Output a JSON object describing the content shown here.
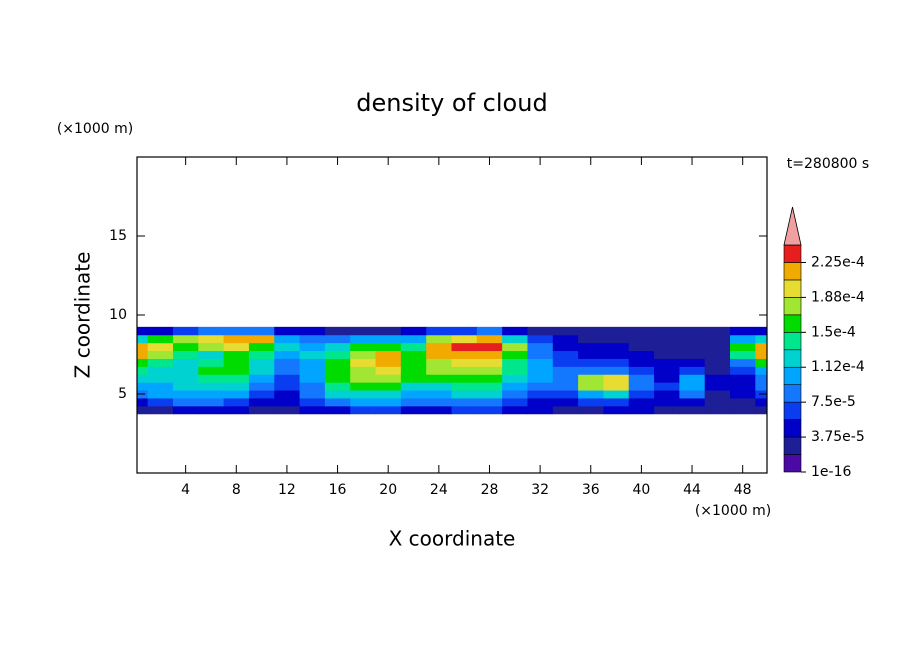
{
  "chart_data": {
    "type": "contour",
    "title": "density of cloud",
    "x_label": "X coordinate",
    "y_label": "Z coordinate",
    "x_unit": "(×1000 m)",
    "y_unit": "(×1000 m)",
    "time_label": "t=280800 s",
    "xlim": [
      0,
      50
    ],
    "ylim": [
      0,
      20
    ],
    "xticks": [
      4,
      8,
      12,
      16,
      20,
      24,
      28,
      32,
      36,
      40,
      44,
      48
    ],
    "yticks": [
      5,
      10,
      15
    ],
    "x": [
      0,
      2,
      4,
      6,
      8,
      10,
      12,
      14,
      16,
      18,
      20,
      22,
      24,
      26,
      28,
      30,
      32,
      34,
      36,
      38,
      40,
      42,
      44,
      46,
      48,
      50
    ],
    "z": [
      4,
      4.5,
      5,
      5.5,
      6,
      6.5,
      7,
      7.5,
      8,
      8.5,
      9
    ],
    "values": [
      [
        2e-05,
        3e-05,
        4e-05,
        4e-05,
        4e-05,
        3e-05,
        3e-05,
        4e-05,
        5e-05,
        6e-05,
        6e-05,
        5e-05,
        5e-05,
        6e-05,
        6e-05,
        5e-05,
        4e-05,
        3e-05,
        3e-05,
        4e-05,
        4e-05,
        3e-05,
        3e-05,
        3e-05,
        3e-05,
        3e-05
      ],
      [
        5e-05,
        7e-05,
        8e-05,
        8e-05,
        7e-05,
        5e-05,
        4e-05,
        6e-05,
        9e-05,
        0.0001,
        0.0001,
        8e-05,
        8e-05,
        9e-05,
        9e-05,
        7e-05,
        5e-05,
        4e-05,
        6e-05,
        7e-05,
        5e-05,
        4e-05,
        5e-05,
        3e-05,
        3e-05,
        4e-05
      ],
      [
        8e-05,
        0.0001,
        0.00011,
        0.00011,
        0.0001,
        7e-05,
        5e-05,
        8e-05,
        0.00012,
        0.00013,
        0.00013,
        0.00011,
        0.00011,
        0.00012,
        0.00012,
        9e-05,
        7e-05,
        6e-05,
        0.00011,
        0.00013,
        7e-05,
        5e-05,
        8e-05,
        3e-05,
        4e-05,
        6e-05
      ],
      [
        0.00011,
        0.00011,
        0.00012,
        0.00013,
        0.00013,
        9e-05,
        6e-05,
        9e-05,
        0.00014,
        0.00015,
        0.00015,
        0.00013,
        0.00013,
        0.00014,
        0.00014,
        0.00011,
        9e-05,
        8e-05,
        0.00017,
        0.00019,
        9e-05,
        6e-05,
        0.00011,
        4e-05,
        5e-05,
        8e-05
      ],
      [
        0.00013,
        0.00012,
        0.00013,
        0.00014,
        0.00014,
        0.00011,
        7e-05,
        0.0001,
        0.00015,
        0.00017,
        0.00017,
        0.00015,
        0.00016,
        0.00016,
        0.00016,
        0.00013,
        0.00011,
        9e-05,
        0.00018,
        0.0002,
        8e-05,
        5e-05,
        0.0001,
        4e-05,
        5e-05,
        9e-05
      ],
      [
        0.00014,
        0.00013,
        0.00013,
        0.00015,
        0.00015,
        0.00012,
        8e-05,
        0.0001,
        0.00015,
        0.00018,
        0.00019,
        0.00016,
        0.00017,
        0.00018,
        0.00018,
        0.00014,
        0.00011,
        8e-05,
        9e-05,
        9e-05,
        6e-05,
        4e-05,
        6e-05,
        3e-05,
        6e-05,
        0.00011
      ],
      [
        0.00016,
        0.00014,
        0.00012,
        0.00014,
        0.00015,
        0.00013,
        9e-05,
        0.00011,
        0.00015,
        0.00019,
        0.00021,
        0.00016,
        0.00018,
        0.0002,
        0.0002,
        0.00014,
        0.0001,
        7e-05,
        6e-05,
        6e-05,
        5e-05,
        4e-05,
        4e-05,
        3e-05,
        9e-05,
        0.00015
      ],
      [
        0.00021,
        0.00018,
        0.00014,
        0.00013,
        0.00015,
        0.00014,
        0.0001,
        0.00012,
        0.00014,
        0.00018,
        0.00021,
        0.00015,
        0.00021,
        0.00022,
        0.00022,
        0.00015,
        9e-05,
        6e-05,
        5e-05,
        5e-05,
        4e-05,
        3e-05,
        3e-05,
        3e-05,
        0.00014,
        0.00021
      ],
      [
        0.00022,
        0.0002,
        0.00016,
        0.00017,
        0.00019,
        0.00016,
        0.00012,
        0.00011,
        0.00012,
        0.00015,
        0.00016,
        0.00014,
        0.00022,
        0.00024,
        0.00024,
        0.00017,
        8e-05,
        5e-05,
        4e-05,
        4e-05,
        3e-05,
        3e-05,
        3e-05,
        3e-05,
        0.00015,
        0.00022
      ],
      [
        0.00012,
        0.00015,
        0.00017,
        0.0002,
        0.00021,
        0.00022,
        0.00011,
        9e-05,
        8e-05,
        0.0001,
        0.0001,
        0.0001,
        0.00017,
        0.0002,
        0.00021,
        0.00013,
        6e-05,
        4e-05,
        3e-05,
        3e-05,
        3e-05,
        3e-05,
        3e-05,
        3e-05,
        0.0001,
        0.00013
      ],
      [
        4e-05,
        5e-05,
        7e-05,
        8e-05,
        9e-05,
        9e-05,
        5e-05,
        4e-05,
        3e-05,
        3e-05,
        3e-05,
        4e-05,
        6e-05,
        7e-05,
        8e-05,
        5e-05,
        3e-05,
        2e-05,
        2e-05,
        2e-05,
        2e-05,
        2e-05,
        2e-05,
        2e-05,
        4e-05,
        5e-05
      ]
    ],
    "levels": [
      1e-16,
      1.875e-05,
      3.75e-05,
      5.625e-05,
      7.5e-05,
      9.375e-05,
      0.0001125,
      0.00013125,
      0.00015,
      0.00016875,
      0.0001875,
      0.00020625,
      0.000225,
      0.00024375
    ],
    "colors": [
      "#4b0aa5",
      "#1e1e96",
      "#0000c8",
      "#0a3cf0",
      "#1478ff",
      "#00a5ff",
      "#00d2d2",
      "#00e68c",
      "#00dc00",
      "#a0e632",
      "#e6dc32",
      "#f0aa00",
      "#fa6e00"
    ],
    "over_color": "#f0a0a0",
    "top_color": "#e61e1e",
    "colorbar_ticks": [
      {
        "value": 1e-16,
        "label": "1e-16"
      },
      {
        "value": 3.75e-05,
        "label": "3.75e-5"
      },
      {
        "value": 7.5e-05,
        "label": "7.5e-5"
      },
      {
        "value": 0.0001125,
        "label": "1.12e-4"
      },
      {
        "value": 0.00015,
        "label": "1.5e-4"
      },
      {
        "value": 0.0001875,
        "label": "1.88e-4"
      },
      {
        "value": 0.000225,
        "label": "2.25e-4"
      }
    ]
  }
}
